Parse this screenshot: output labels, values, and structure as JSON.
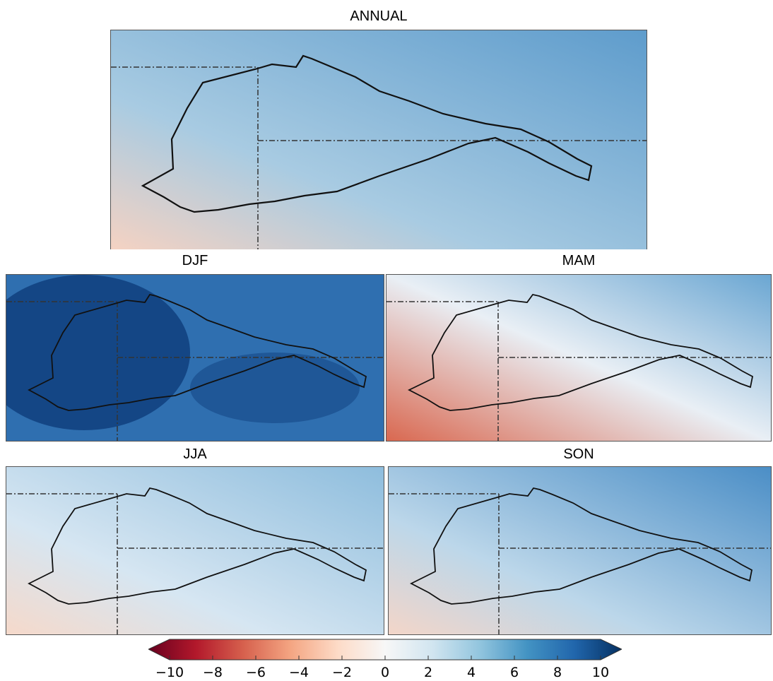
{
  "panels": {
    "annual": {
      "title": "ANNUAL",
      "base": "#a8cbe2",
      "tint": "#5e9ccc",
      "warm": "#f5d2c2"
    },
    "djf": {
      "title": "DJF",
      "base": "#2f6fb0",
      "tint": "#0f3f7e",
      "warm": "#2a66a8"
    },
    "mam": {
      "title": "MAM",
      "base": "#e9eff5",
      "tint": "#6aa6d2",
      "warm": "#d9674f"
    },
    "jja": {
      "title": "JJA",
      "base": "#d6e6f2",
      "tint": "#8ebddd",
      "warm": "#f6d9ca"
    },
    "son": {
      "title": "SON",
      "base": "#bcd7ea",
      "tint": "#4b8ec6",
      "warm": "#f4d6c8"
    }
  },
  "colorbar": {
    "min": -10,
    "max": 10,
    "ticks": [
      "−10",
      "−8",
      "−6",
      "−4",
      "−2",
      "0",
      "2",
      "4",
      "6",
      "8",
      "10"
    ],
    "colors": [
      "#67001f",
      "#b2182b",
      "#d6604d",
      "#f4a582",
      "#fddbc7",
      "#f7f7f7",
      "#d1e5f0",
      "#92c5de",
      "#4393c3",
      "#2166ac",
      "#053061"
    ],
    "extend": "both"
  }
}
